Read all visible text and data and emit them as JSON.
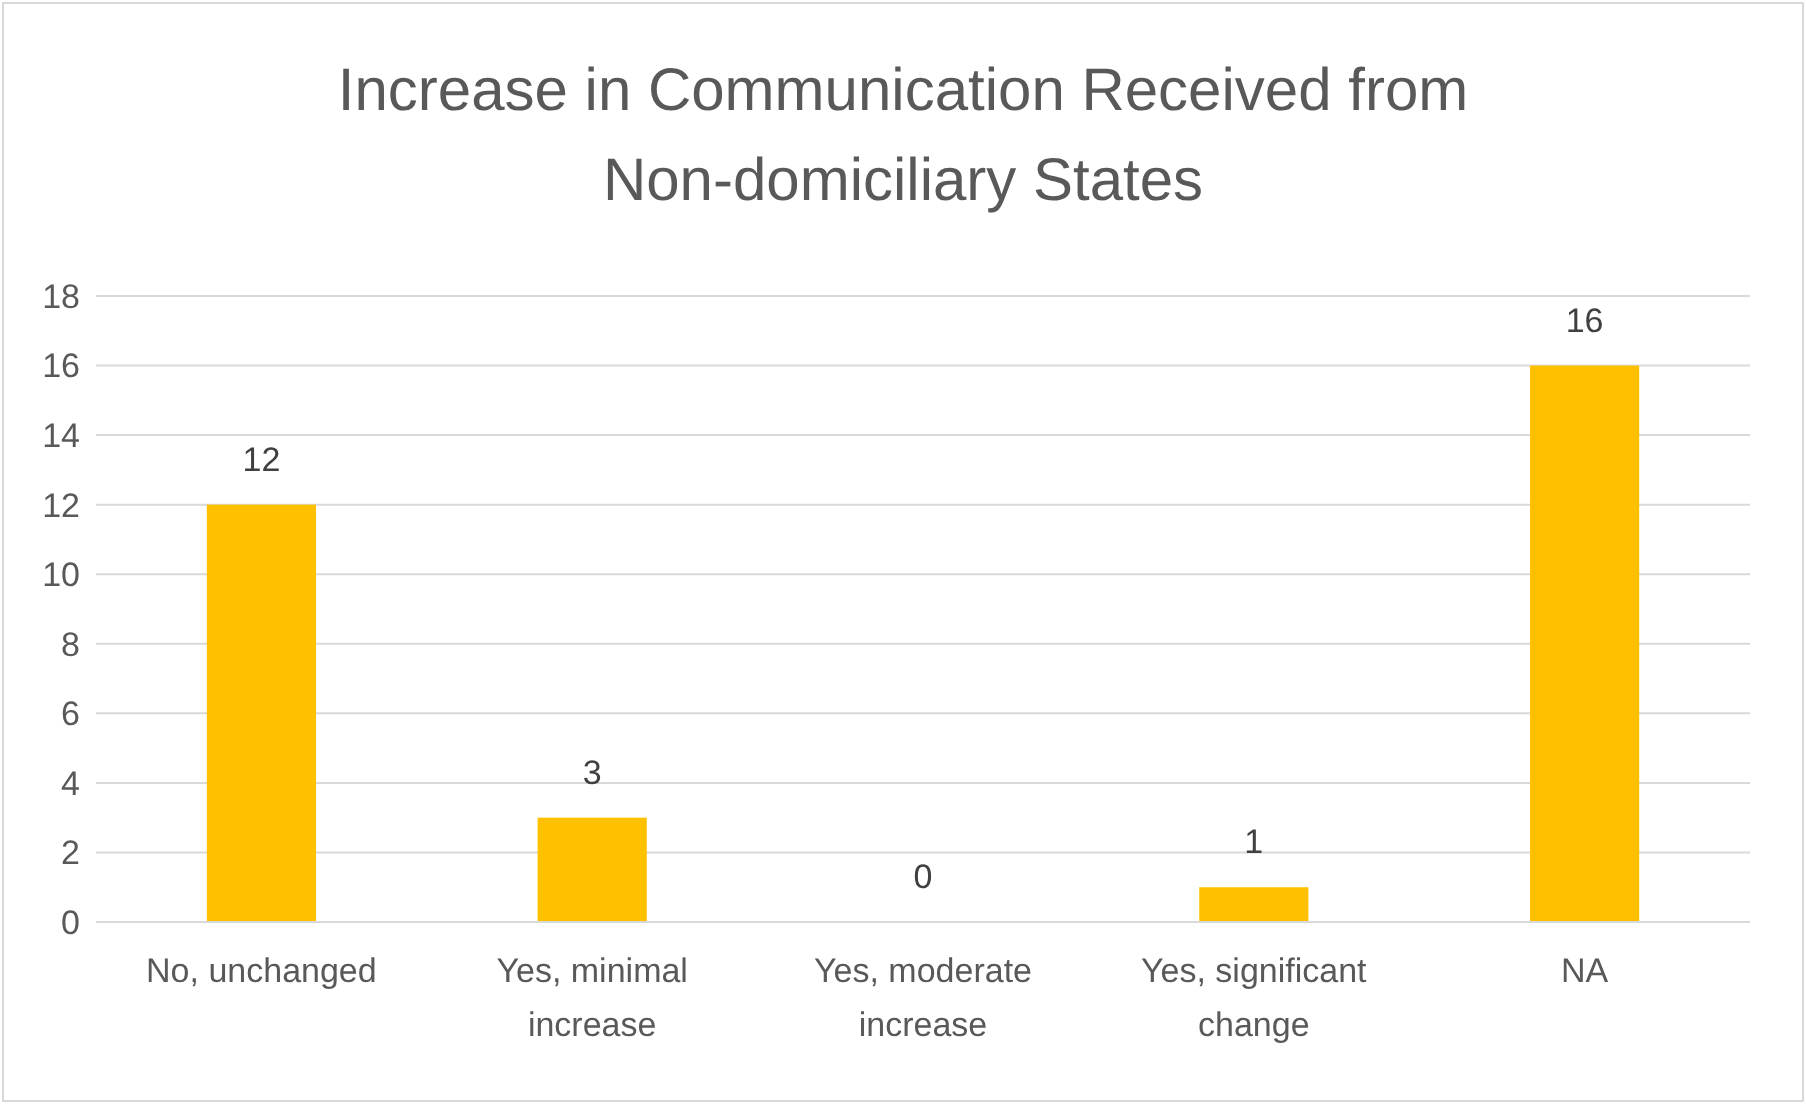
{
  "chart_data": {
    "type": "bar",
    "title": "Increase in Communication Received from Non-domiciliary States",
    "categories": [
      "No, unchanged",
      "Yes, minimal increase",
      "Yes, moderate increase",
      "Yes, significant change",
      "NA"
    ],
    "values": [
      12,
      3,
      0,
      1,
      16
    ],
    "color": "#ffc000",
    "ylim": [
      0,
      18
    ],
    "yticks": [
      0,
      2,
      4,
      6,
      8,
      10,
      12,
      14,
      16,
      18
    ],
    "grid": "y",
    "data_labels": true
  }
}
